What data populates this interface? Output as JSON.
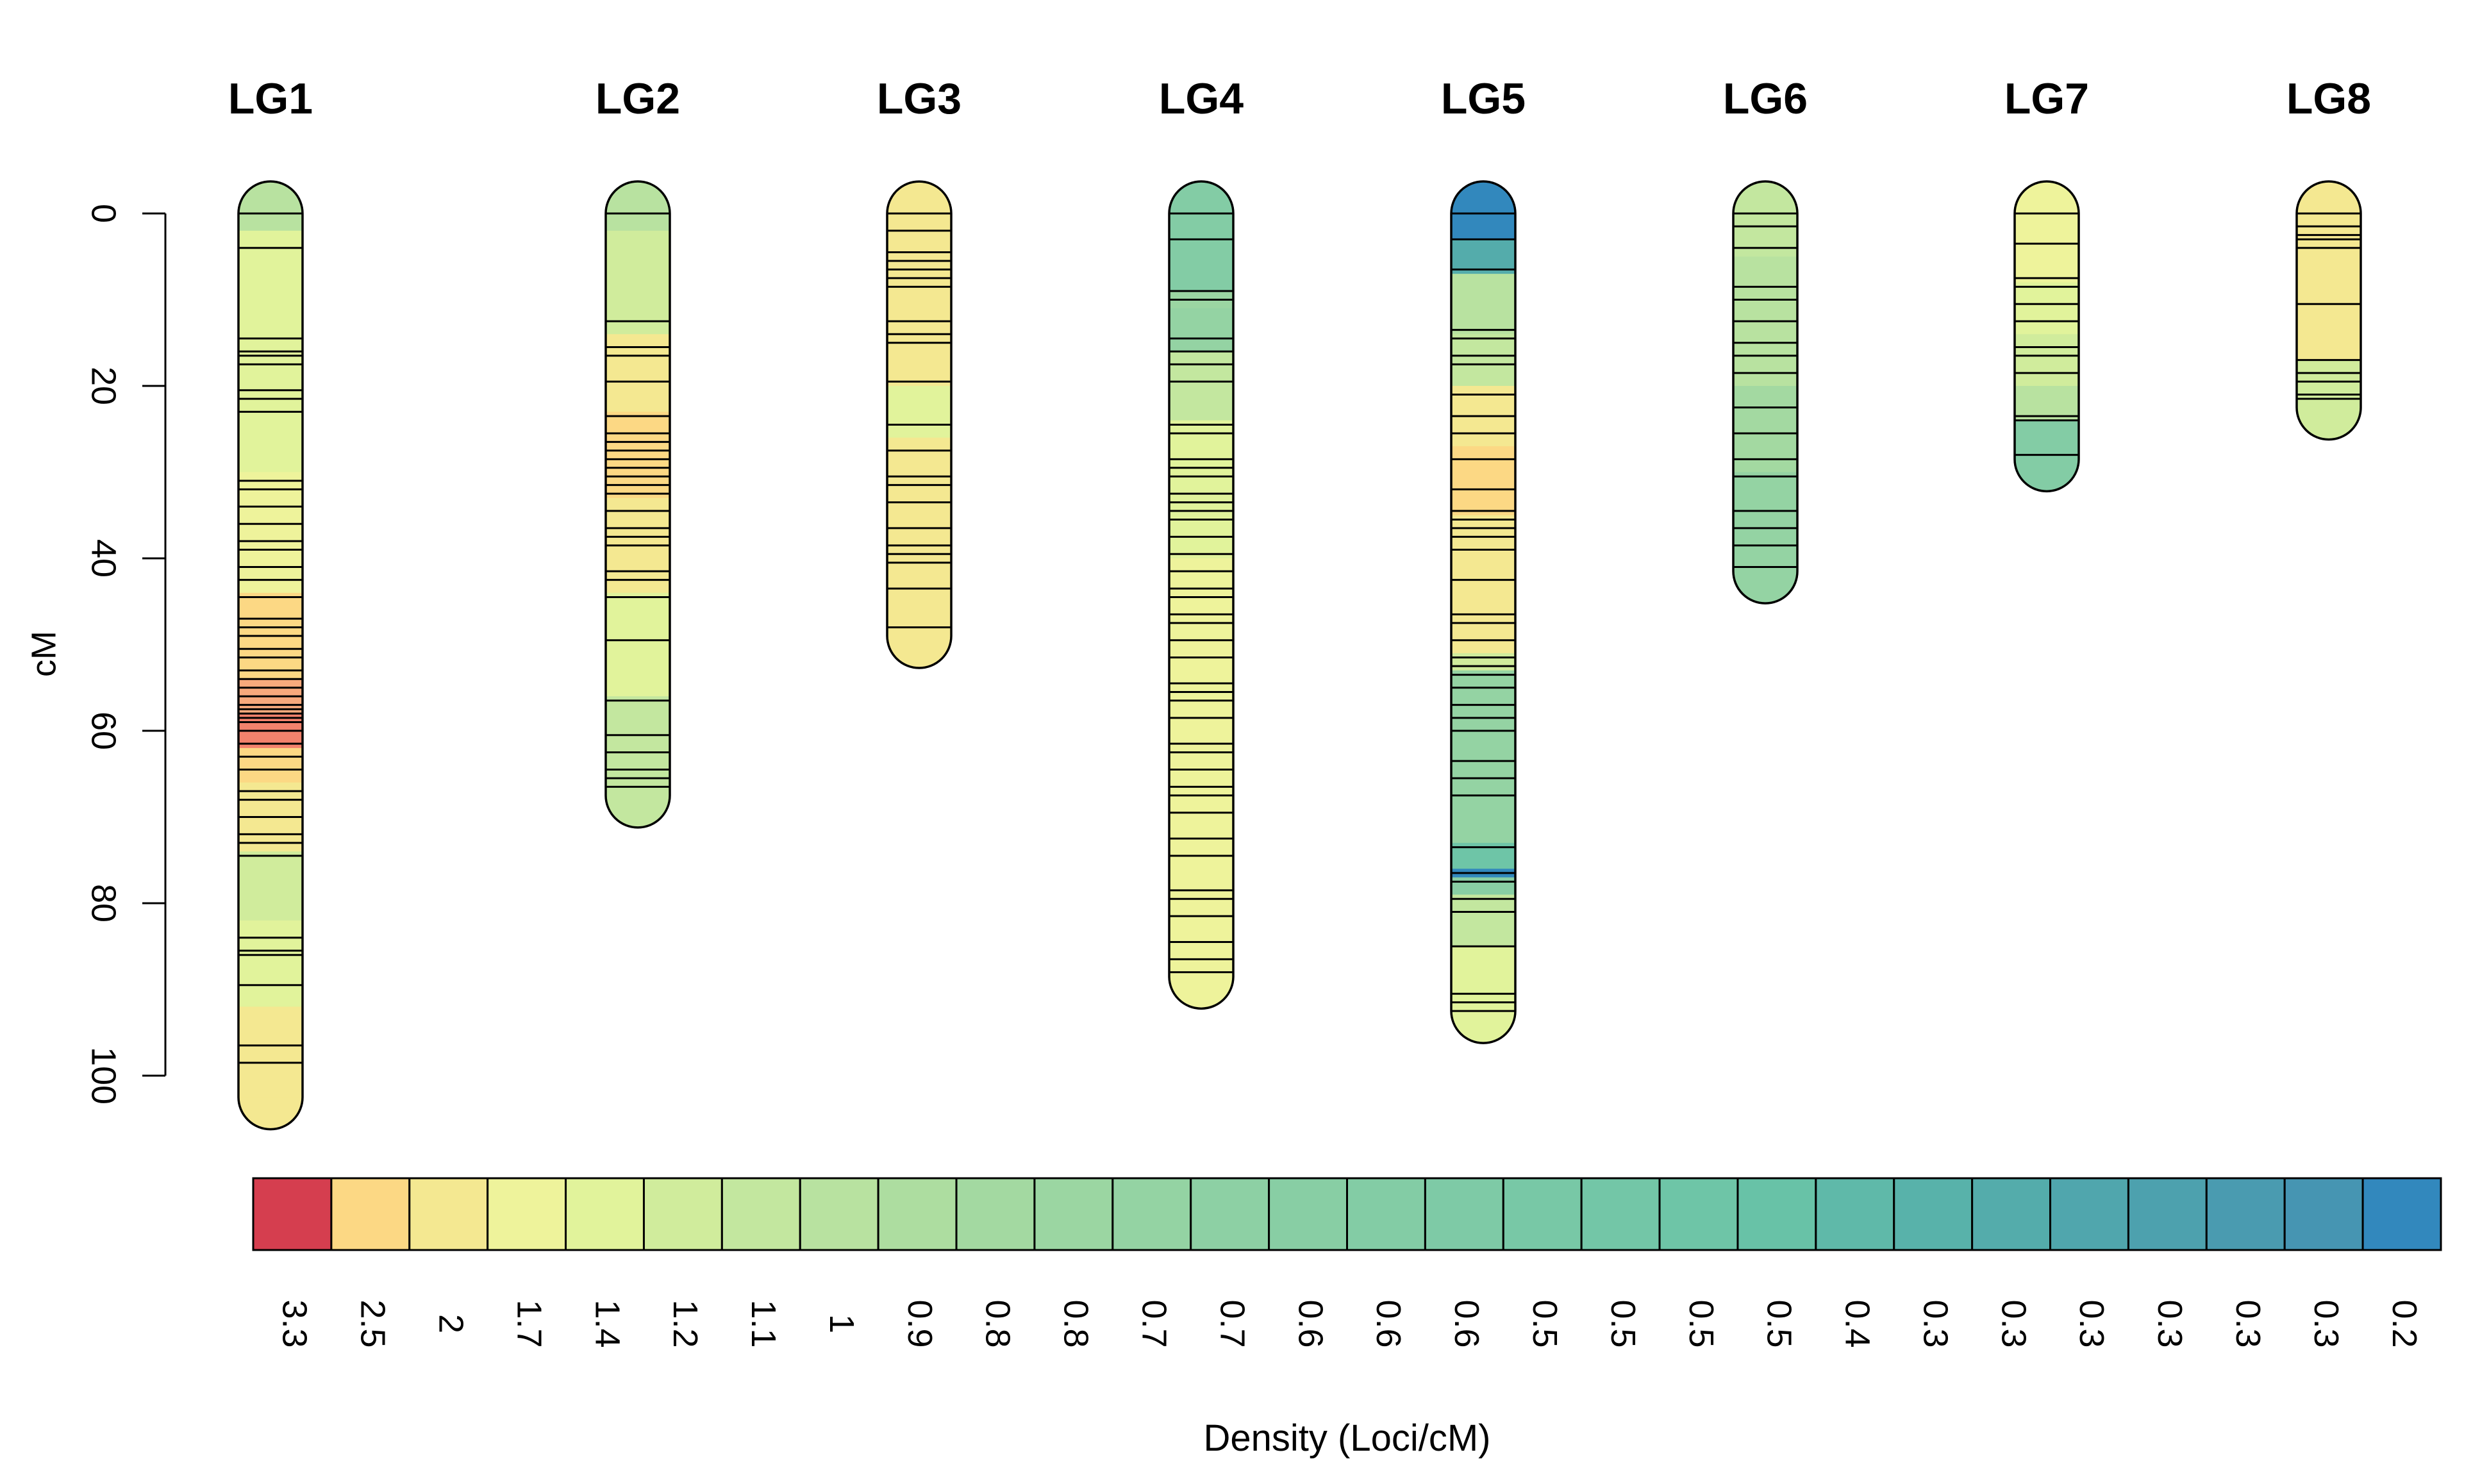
{
  "chart_data": {
    "type": "linkage-map",
    "ylabel": "cM",
    "ylim": [
      0,
      100
    ],
    "yticks": [
      0,
      20,
      40,
      60,
      80,
      100
    ],
    "legend": {
      "xlabel": "Density (Loci/cM)",
      "labels": [
        "3.3",
        "2.5",
        "2",
        "1.7",
        "1.4",
        "1.2",
        "1.1",
        "1",
        "0.9",
        "0.8",
        "0.8",
        "0.7",
        "0.7",
        "0.6",
        "0.6",
        "0.6",
        "0.5",
        "0.5",
        "0.5",
        "0.5",
        "0.4",
        "0.3",
        "0.3",
        "0.3",
        "0.3",
        "0.3",
        "0.3",
        "0.2"
      ],
      "colors": [
        "#d53e4f",
        "#fcd884",
        "#f4e891",
        "#eef39b",
        "#e1f39b",
        "#d0ec9c",
        "#c3e79f",
        "#b8e2a0",
        "#addda0",
        "#a3d9a1",
        "#9bd6a2",
        "#94d3a3",
        "#8dd0a4",
        "#88cea4",
        "#83cca5",
        "#7ecaa6",
        "#78c8a6",
        "#73c6a7",
        "#6ec5a7",
        "#68c2a7",
        "#5fb9a9",
        "#58b2aa",
        "#54acab",
        "#50a6ad",
        "#4da1ae",
        "#4a9bb0",
        "#4695b2",
        "#3288bd"
      ]
    },
    "groups": [
      {
        "name": "LG1",
        "length": 102.5,
        "loci": [
          0,
          4,
          14.5,
          16,
          16.5,
          17.5,
          20.5,
          21.5,
          23,
          31,
          32,
          34,
          36,
          38,
          39,
          41,
          42.5,
          44.5,
          47,
          48,
          49,
          50.5,
          51.5,
          53,
          54,
          55,
          56,
          57,
          57.5,
          58,
          58.5,
          59,
          60,
          61.5,
          63,
          64.5,
          67,
          68,
          70,
          72,
          73,
          74.5,
          84,
          85.5,
          86,
          89.5,
          96.5,
          98.5
        ],
        "segments": [
          [
            0,
            2,
            "#b8e2a0"
          ],
          [
            2,
            12,
            "#e1f39b"
          ],
          [
            12,
            30,
            "#e1f39b"
          ],
          [
            30,
            44,
            "#eef39b"
          ],
          [
            44,
            48,
            "#fcd884"
          ],
          [
            48,
            54,
            "#fcd884"
          ],
          [
            54,
            58,
            "#f7a97c"
          ],
          [
            58,
            62,
            "#f2826c"
          ],
          [
            62,
            66,
            "#fcd884"
          ],
          [
            66,
            74,
            "#f4e891"
          ],
          [
            74,
            82,
            "#d0ec9c"
          ],
          [
            82,
            92,
            "#e1f39b"
          ],
          [
            92,
            102.5,
            "#f4e891"
          ]
        ]
      },
      {
        "name": "LG2",
        "length": 67.5,
        "loci": [
          0,
          12.5,
          15.5,
          16.5,
          19.5,
          23.5,
          25.5,
          26.5,
          27.5,
          28.5,
          29.5,
          30.5,
          31.5,
          32.5,
          34.5,
          36.5,
          37.5,
          38.5,
          41.5,
          42.5,
          44.5,
          49.5,
          56.5,
          60.5,
          62.5,
          64.5,
          65.5,
          66.5
        ],
        "segments": [
          [
            0,
            2,
            "#b8e2a0"
          ],
          [
            2,
            14,
            "#d0ec9c"
          ],
          [
            14,
            23,
            "#f4e891"
          ],
          [
            23,
            33,
            "#fcd884"
          ],
          [
            33,
            44,
            "#f4e891"
          ],
          [
            44,
            50,
            "#e1f39b"
          ],
          [
            50,
            56,
            "#e1f39b"
          ],
          [
            56,
            67.5,
            "#c3e79f"
          ]
        ]
      },
      {
        "name": "LG3",
        "length": 49,
        "loci": [
          0,
          2,
          4.5,
          5.5,
          6.5,
          7.5,
          8.5,
          12.5,
          14,
          15,
          19.5,
          24.5,
          27.5,
          30.5,
          31.5,
          33.5,
          36.5,
          38.5,
          39.5,
          40.5,
          43.5,
          48
        ],
        "segments": [
          [
            0,
            20,
            "#f4e891"
          ],
          [
            20,
            26,
            "#e1f39b"
          ],
          [
            26,
            49,
            "#f4e891"
          ]
        ]
      },
      {
        "name": "LG4",
        "length": 88.5,
        "loci": [
          0,
          3,
          9,
          10,
          14.5,
          16,
          17.5,
          19.5,
          24.5,
          25.5,
          28.5,
          29.5,
          30.5,
          32.5,
          33.5,
          34.5,
          35.5,
          37.5,
          39.5,
          41.5,
          43.5,
          44.5,
          46.5,
          47.5,
          49.5,
          51.5,
          54.5,
          55.5,
          56.5,
          58.5,
          61.5,
          62.5,
          64.5,
          66.5,
          67.5,
          69.5,
          72.5,
          74.5,
          78.5,
          79.5,
          81.5,
          84.5,
          86.5,
          88
        ],
        "segments": [
          [
            0,
            9,
            "#83cca5"
          ],
          [
            9,
            11,
            "#9bd6a2"
          ],
          [
            11,
            16,
            "#94d3a3"
          ],
          [
            16,
            24,
            "#c3e79f"
          ],
          [
            24,
            40,
            "#e1f39b"
          ],
          [
            40,
            88.5,
            "#eef39b"
          ]
        ]
      },
      {
        "name": "LG5",
        "length": 92.5,
        "loci": [
          0,
          3,
          6.5,
          13.5,
          14.5,
          16.5,
          17.5,
          21,
          23.5,
          25.5,
          28.5,
          32,
          34.5,
          35.5,
          36.5,
          37.5,
          39,
          42.5,
          46.5,
          47.5,
          49.5,
          51.5,
          52.5,
          53.5,
          55,
          57,
          58.5,
          60,
          63.5,
          65.5,
          67.5,
          73.5,
          76.5,
          77.5,
          79.5,
          81,
          85,
          90.5,
          91.5,
          92.5
        ],
        "segments": [
          [
            0,
            3,
            "#3288bd"
          ],
          [
            3,
            7,
            "#54acab"
          ],
          [
            7,
            14,
            "#b8e2a0"
          ],
          [
            14,
            20,
            "#c3e79f"
          ],
          [
            20,
            27,
            "#f4e891"
          ],
          [
            27,
            35,
            "#fcd884"
          ],
          [
            35,
            51,
            "#f4e891"
          ],
          [
            51,
            53,
            "#d0ec9c"
          ],
          [
            53,
            73,
            "#94d3a3"
          ],
          [
            73,
            76,
            "#6ec5a7"
          ],
          [
            76,
            77,
            "#3288bd"
          ],
          [
            77,
            79,
            "#88cea4"
          ],
          [
            79,
            85,
            "#c3e79f"
          ],
          [
            85,
            92.5,
            "#e1f39b"
          ]
        ]
      },
      {
        "name": "LG6",
        "length": 41.5,
        "loci": [
          0,
          1.5,
          4,
          8.5,
          10,
          12.5,
          15,
          16.5,
          18.5,
          22.5,
          25.5,
          28.5,
          30.5,
          34.5,
          36.5,
          38.5,
          41
        ],
        "segments": [
          [
            0,
            5,
            "#c3e79f"
          ],
          [
            5,
            20,
            "#b8e2a0"
          ],
          [
            20,
            30,
            "#a3d9a1"
          ],
          [
            30,
            41.5,
            "#94d3a3"
          ]
        ]
      },
      {
        "name": "LG7",
        "length": 28.5,
        "loci": [
          0,
          3.5,
          7.5,
          8.5,
          10.5,
          12.5,
          15.5,
          16.5,
          18.5,
          23.5,
          24,
          28
        ],
        "segments": [
          [
            0,
            8,
            "#eef39b"
          ],
          [
            8,
            14,
            "#e1f39b"
          ],
          [
            14,
            20,
            "#d0ec9c"
          ],
          [
            20,
            24,
            "#b8e2a0"
          ],
          [
            24,
            28.5,
            "#83cca5"
          ]
        ]
      },
      {
        "name": "LG8",
        "length": 22.5,
        "loci": [
          0,
          1.5,
          2.5,
          3,
          4,
          10.5,
          17,
          18.5,
          19.5,
          21,
          21.5
        ],
        "segments": [
          [
            0,
            5,
            "#f4e891"
          ],
          [
            5,
            17,
            "#f4e891"
          ],
          [
            17,
            22.5,
            "#d0ec9c"
          ]
        ]
      }
    ]
  }
}
